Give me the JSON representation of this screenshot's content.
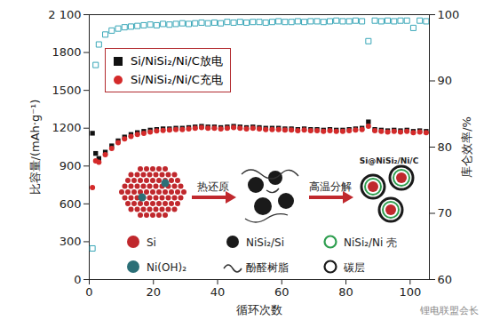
{
  "chart_data": {
    "type": "scatter",
    "x_label": "循环次数",
    "y_label": "比容量/(mAh·g⁻¹)",
    "y2_label": "库仑效率/%",
    "xlim": [
      0,
      106
    ],
    "xticks": [
      0,
      20,
      40,
      60,
      80,
      100
    ],
    "ylim": [
      0,
      2100
    ],
    "yticks": [
      0,
      300,
      600,
      900,
      1200,
      1500,
      1800,
      {
        "value": 2100,
        "label": "2 100"
      }
    ],
    "y2lim": [
      60,
      100
    ],
    "y2ticks": [
      60,
      70,
      80,
      90,
      100
    ],
    "legend": "upper left",
    "x": [
      1,
      2,
      3,
      5,
      7,
      9,
      11,
      13,
      15,
      17,
      19,
      21,
      23,
      25,
      27,
      29,
      31,
      33,
      35,
      37,
      39,
      41,
      43,
      45,
      47,
      49,
      51,
      53,
      55,
      57,
      59,
      61,
      63,
      65,
      67,
      69,
      71,
      73,
      75,
      77,
      79,
      81,
      83,
      85,
      87,
      89,
      91,
      93,
      95,
      97,
      99,
      101,
      103,
      105
    ],
    "series": [
      {
        "name": "Si/NiSi₂/Ni/C放电",
        "color": "#111111",
        "marker": "square",
        "values": [
          1160,
          1000,
          960,
          1010,
          1060,
          1100,
          1130,
          1150,
          1165,
          1175,
          1185,
          1190,
          1195,
          1195,
          1200,
          1200,
          1205,
          1210,
          1215,
          1210,
          1210,
          1205,
          1210,
          1215,
          1210,
          1205,
          1210,
          1205,
          1200,
          1200,
          1200,
          1195,
          1195,
          1190,
          1195,
          1190,
          1190,
          1185,
          1190,
          1185,
          1185,
          1190,
          1195,
          1200,
          1250,
          1190,
          1185,
          1180,
          1185,
          1180,
          1185,
          1175,
          1180,
          1175
        ]
      },
      {
        "name": "Si/NiSi₂/Ni/C充电",
        "color": "#d42a2a",
        "marker": "circle",
        "values": [
          730,
          940,
          930,
          990,
          1040,
          1085,
          1115,
          1135,
          1150,
          1160,
          1170,
          1178,
          1183,
          1185,
          1190,
          1190,
          1195,
          1200,
          1205,
          1200,
          1200,
          1195,
          1200,
          1205,
          1200,
          1195,
          1200,
          1195,
          1190,
          1190,
          1190,
          1185,
          1185,
          1180,
          1185,
          1180,
          1180,
          1175,
          1180,
          1175,
          1175,
          1180,
          1185,
          1190,
          1215,
          1180,
          1175,
          1170,
          1175,
          1170,
          1175,
          1165,
          1170,
          1165
        ]
      },
      {
        "name": "库仑效率",
        "color": "#3aa7b8",
        "marker": "open_square",
        "axis": "y2",
        "values": [
          64.7,
          92.4,
          95.5,
          97.0,
          97.6,
          97.9,
          98.1,
          98.2,
          98.3,
          98.4,
          98.5,
          98.4,
          98.6,
          98.5,
          98.6,
          98.7,
          98.6,
          98.7,
          98.8,
          98.7,
          98.8,
          98.7,
          98.9,
          98.8,
          98.9,
          98.8,
          98.9,
          98.9,
          98.8,
          98.9,
          99.0,
          98.9,
          98.9,
          99.0,
          98.9,
          99.0,
          99.0,
          98.9,
          99.0,
          99.1,
          99.0,
          99.0,
          99.1,
          99.0,
          96.0,
          99.1,
          99.0,
          99.1,
          99.0,
          99.1,
          99.1,
          98.0,
          99.1,
          99.0
        ]
      }
    ],
    "legend_series": [
      "Si/NiSi₂/Ni/C放电",
      "Si/NiSi₂/Ni/C充电"
    ],
    "inset": {
      "steps": [
        "热还原",
        "高温分解"
      ],
      "product": "Si@NiSi₂/Ni/C",
      "legend": [
        {
          "label": "Si",
          "color": "#c0282d",
          "marker": "dot"
        },
        {
          "label": "NiSi₂/Si",
          "color": "#1a1a1a",
          "marker": "dot"
        },
        {
          "label": "NiSi₂/Ni 壳",
          "color": "#2e9e4f",
          "marker": "ring"
        },
        {
          "label": "Ni(OH)₂",
          "color": "#2b6f77",
          "marker": "dot"
        },
        {
          "label": "酚醛树脂",
          "color": "#333333",
          "marker": "curve"
        },
        {
          "label": "碳层",
          "color": "#1a1a1a",
          "marker": "ring"
        }
      ]
    },
    "watermark": "锂电联盟会长"
  }
}
